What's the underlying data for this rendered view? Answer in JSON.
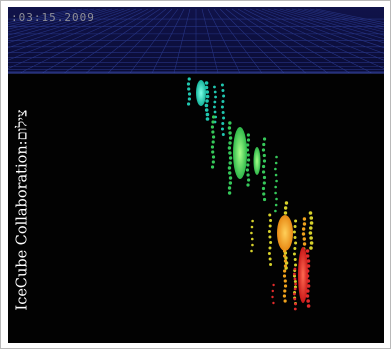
{
  "timestamp": ":03:15.2009",
  "credit": {
    "name": "IceCube Collaboration",
    "separator": ": ",
    "label": "צילום"
  },
  "colors": {
    "sky_top": "#10134a",
    "sky_bottom": "#0a0c35",
    "grid": "#2b3a8f",
    "ice": "#020202",
    "cyan": "#20c7b0",
    "green": "#36c85a",
    "yellow": "#d7d22c",
    "orange": "#f0a21c",
    "red": "#e22b2b"
  },
  "icons": [
    "icecube-event-display"
  ]
}
